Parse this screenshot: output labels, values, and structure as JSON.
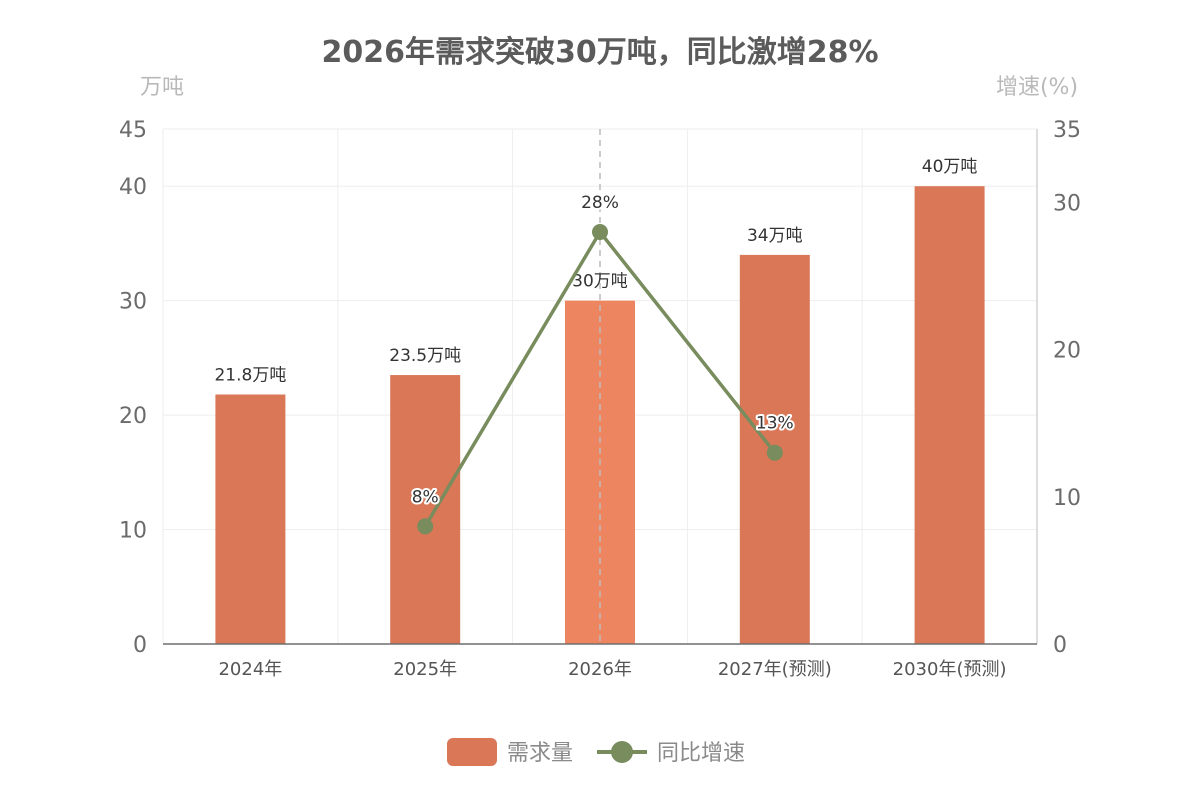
{
  "chart_data": {
    "type": "bar",
    "title": "2026年需求突破30万吨，同比激增28%",
    "categories": [
      "2024年",
      "2025年",
      "2026年",
      "2027年(预测)",
      "2030年(预测)"
    ],
    "series": [
      {
        "name": "需求量",
        "type": "bar",
        "axis": "left",
        "values": [
          21.8,
          23.5,
          30,
          34,
          40
        ],
        "labels": [
          "21.8万吨",
          "23.5万吨",
          "30万吨",
          "34万吨",
          "40万吨"
        ],
        "color": "#d97757",
        "highlight_index": 2,
        "highlight_color": "#ec8560"
      },
      {
        "name": "同比增速",
        "type": "line",
        "axis": "right",
        "values": [
          null,
          8,
          28,
          13,
          null
        ],
        "labels": [
          null,
          "8%",
          "28%",
          "13%",
          null
        ],
        "color": "#788c5d"
      }
    ],
    "y_left": {
      "label": "万吨",
      "min": 0,
      "max": 45,
      "ticks": [
        0,
        10,
        20,
        30,
        40,
        45
      ]
    },
    "y_right": {
      "label": "增速(%)",
      "min": 0,
      "max": 35,
      "ticks": [
        0,
        10,
        20,
        30,
        35
      ]
    },
    "grid": true,
    "legend_position": "bottom-center",
    "marker_category": "2026年"
  }
}
